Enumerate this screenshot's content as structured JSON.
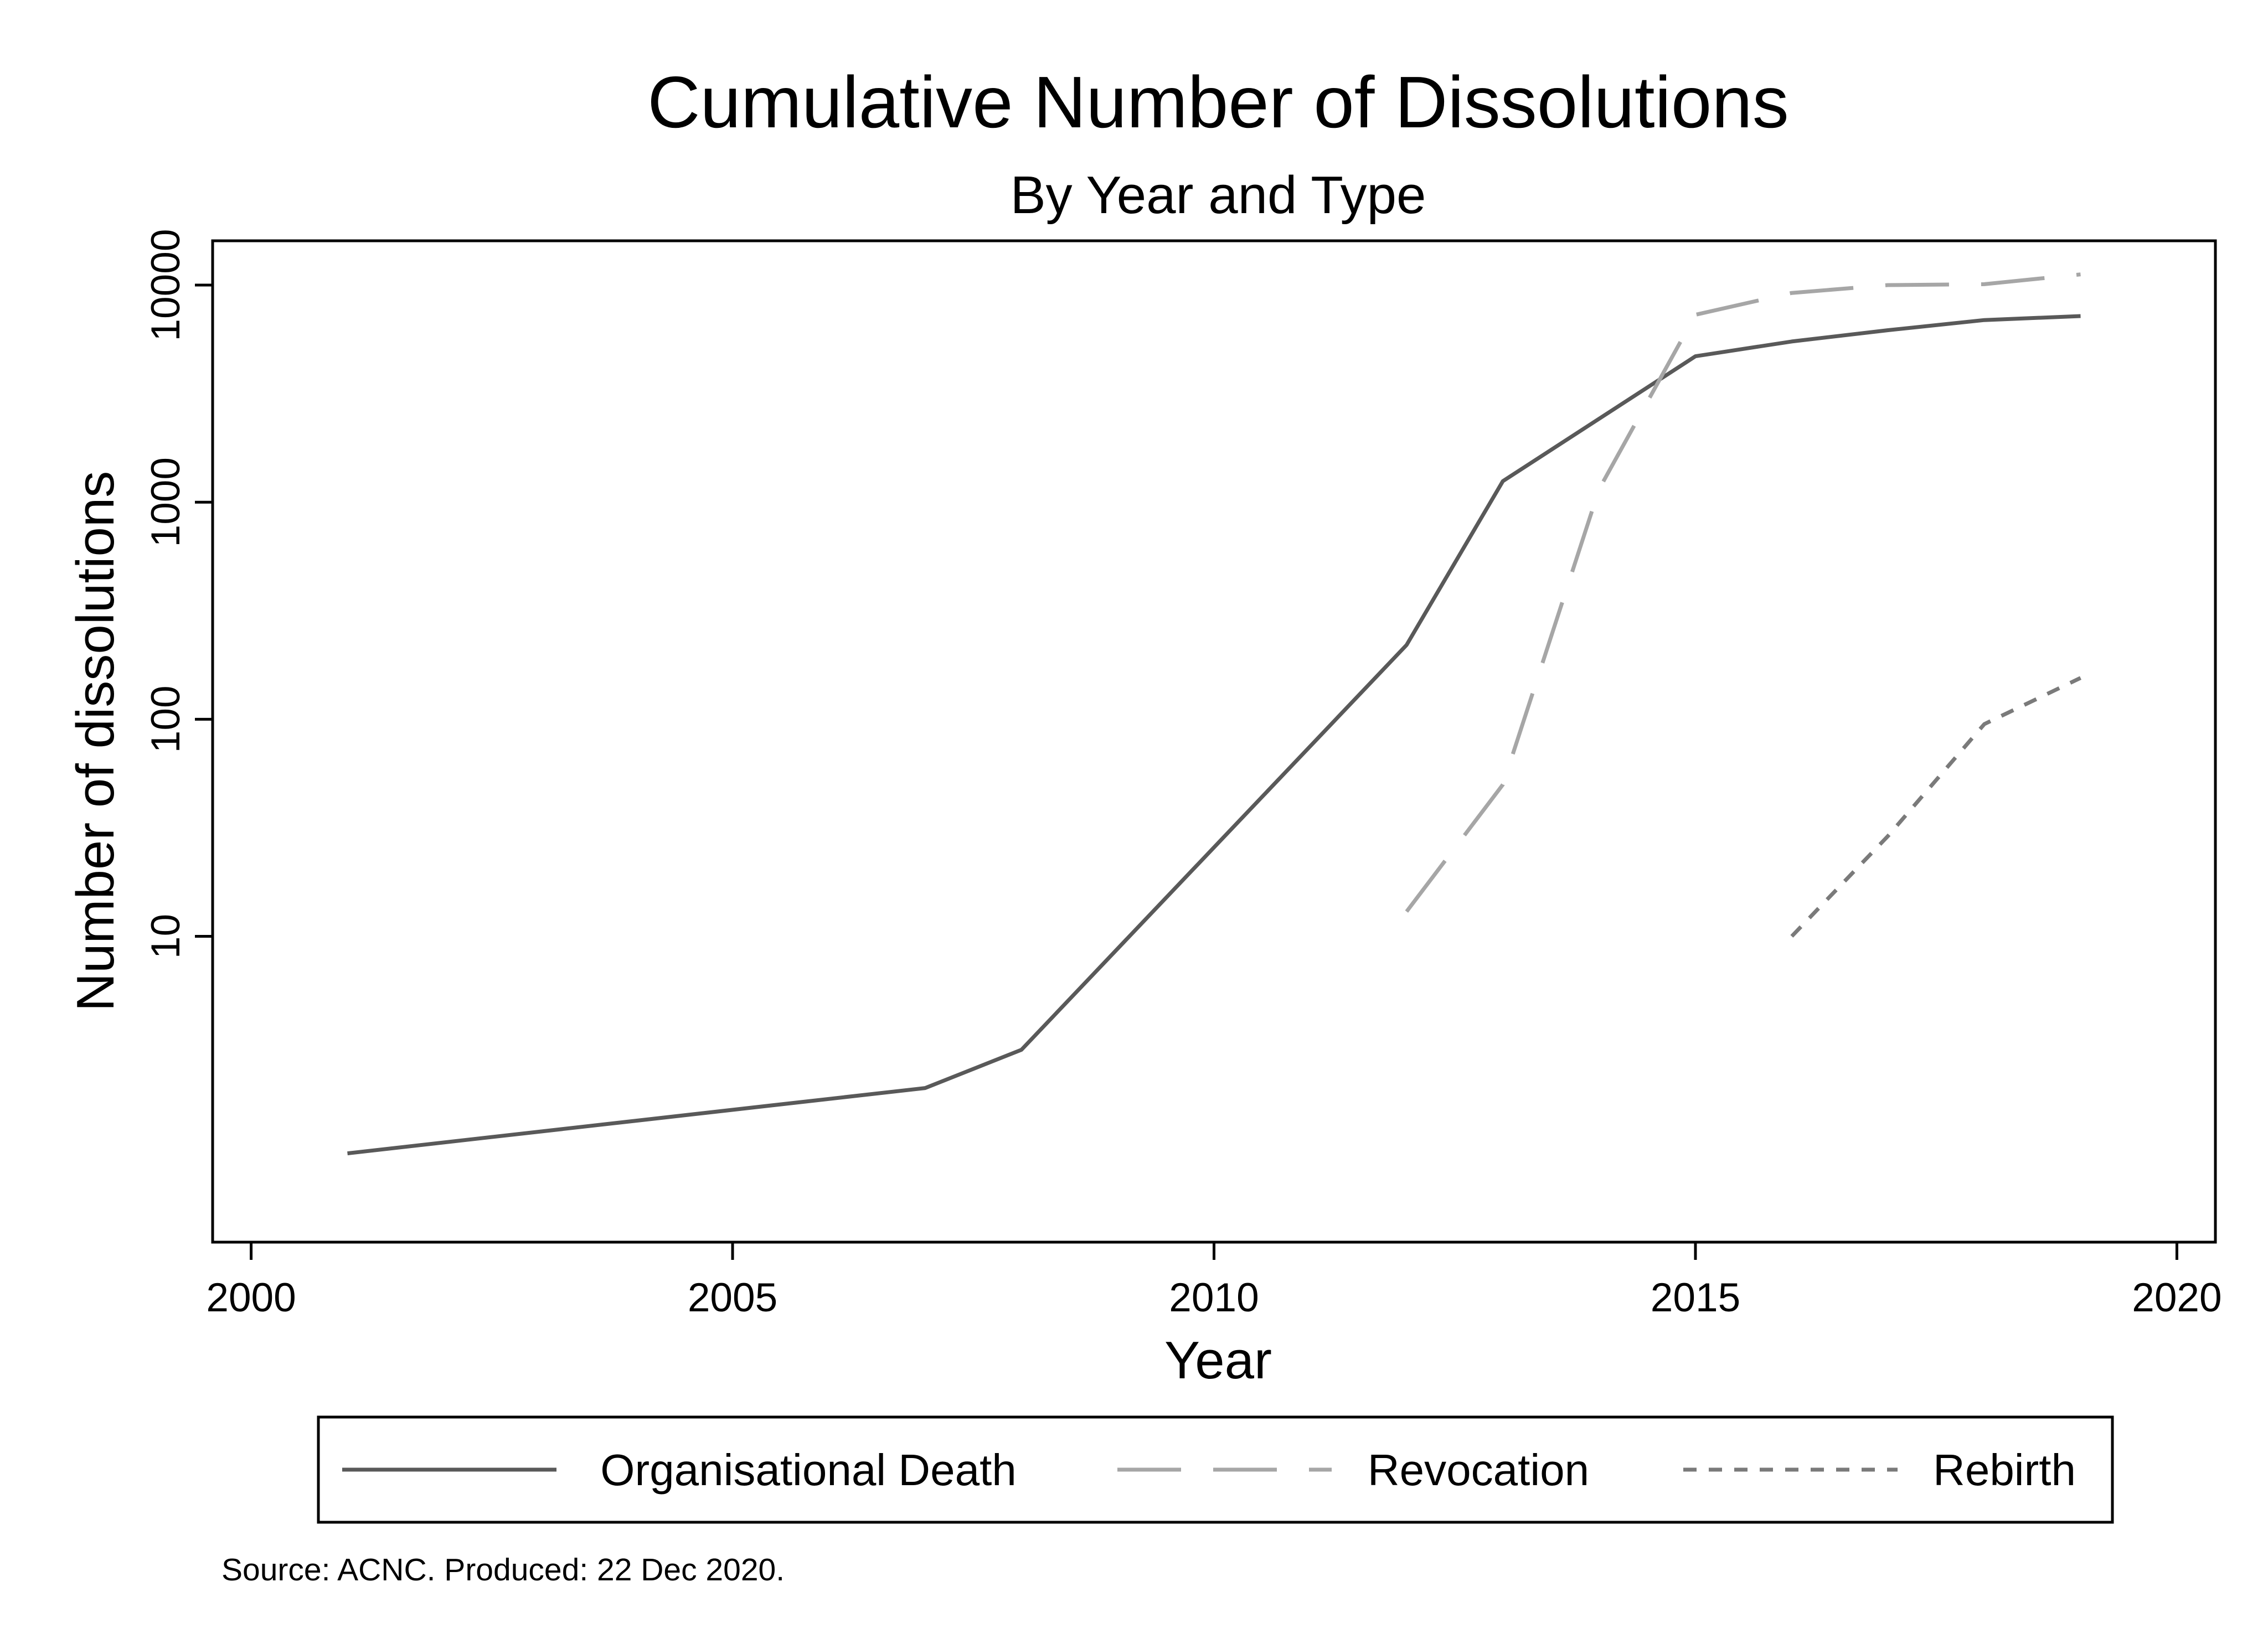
{
  "chart_data": {
    "type": "line",
    "title": "Cumulative Number of Dissolutions",
    "subtitle": "By Year and Type",
    "xlabel": "Year",
    "ylabel": "Number of dissolutions",
    "xlim": [
      1999.6,
      2020.4
    ],
    "ylim": [
      0.39,
      16000
    ],
    "y_scale": "log",
    "x_ticks": [
      2000,
      2005,
      2010,
      2015,
      2020
    ],
    "x_tick_labels": [
      "2000",
      "2005",
      "2010",
      "2015",
      "2020"
    ],
    "y_ticks": [
      10,
      100,
      1000,
      10000
    ],
    "y_tick_labels": [
      "10",
      "100",
      "1000",
      "10000"
    ],
    "grid": false,
    "legend_position": "bottom",
    "note": "Source: ACNC. Produced: 22 Dec 2020.",
    "series": [
      {
        "name": "Organisational Death",
        "color": "#595959",
        "dash": "solid",
        "x": [
          2001,
          2007,
          2008,
          2012,
          2013,
          2015,
          2016,
          2017,
          2018,
          2019
        ],
        "y": [
          1,
          2,
          3,
          220,
          1250,
          4700,
          5500,
          6200,
          6900,
          7200
        ]
      },
      {
        "name": "Revocation",
        "color": "#a6a6a6",
        "dash": "long-dash",
        "x": [
          2012,
          2013,
          2014,
          2015,
          2016,
          2017,
          2018,
          2019
        ],
        "y": [
          13,
          50,
          1150,
          7300,
          9200,
          10000,
          10100,
          11200
        ]
      },
      {
        "name": "Rebirth",
        "color": "#7a7a7a",
        "dash": "short-dash",
        "x": [
          2016,
          2017,
          2018,
          2019
        ],
        "y": [
          10,
          29,
          95,
          155
        ]
      }
    ]
  }
}
